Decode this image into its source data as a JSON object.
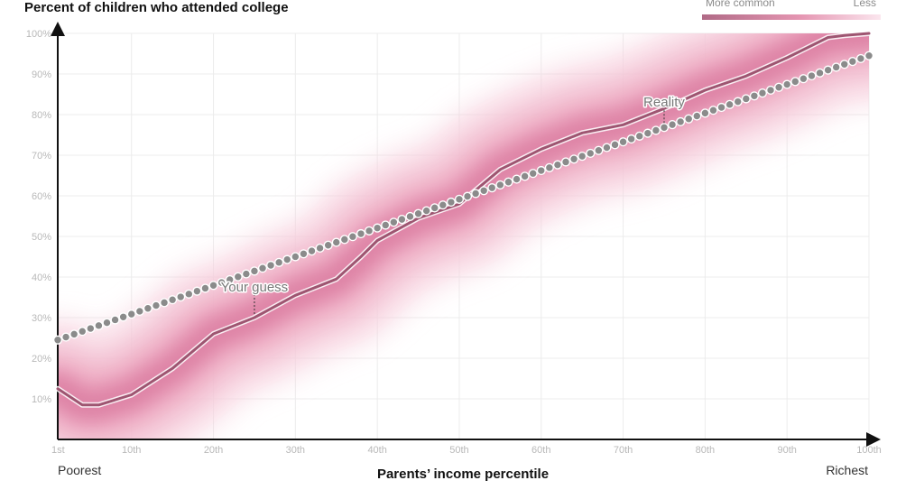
{
  "chart_data": {
    "type": "line",
    "title": "Percent of children who attended college",
    "xlabel": "Parents’ income percentile",
    "ylabel": "",
    "xlim": [
      1,
      100
    ],
    "ylim": [
      0,
      100
    ],
    "x_ticks": [
      {
        "value": 1,
        "label": "1st"
      },
      {
        "value": 10,
        "label": "10th"
      },
      {
        "value": 20,
        "label": "20th"
      },
      {
        "value": 30,
        "label": "30th"
      },
      {
        "value": 40,
        "label": "40th"
      },
      {
        "value": 50,
        "label": "50th"
      },
      {
        "value": 60,
        "label": "60th"
      },
      {
        "value": 70,
        "label": "70th"
      },
      {
        "value": 80,
        "label": "80th"
      },
      {
        "value": 90,
        "label": "90th"
      },
      {
        "value": 100,
        "label": "100th"
      }
    ],
    "y_ticks": [
      {
        "value": 10,
        "label": "10%"
      },
      {
        "value": 20,
        "label": "20%"
      },
      {
        "value": 30,
        "label": "30%"
      },
      {
        "value": 40,
        "label": "40%"
      },
      {
        "value": 50,
        "label": "50%"
      },
      {
        "value": 60,
        "label": "60%"
      },
      {
        "value": 70,
        "label": "70%"
      },
      {
        "value": 80,
        "label": "80%"
      },
      {
        "value": 90,
        "label": "90%"
      },
      {
        "value": 100,
        "label": "100%"
      }
    ],
    "x_end_labels": {
      "left": "Poorest",
      "right": "Richest"
    },
    "grid": true,
    "legend": {
      "placement": "top-right",
      "left_label": "More common",
      "right_label": "Less",
      "colors": [
        "#b06a86",
        "#e596b2",
        "#fbe6ee"
      ]
    },
    "series": [
      {
        "name": "Reality",
        "style": "line",
        "color": "#9e5571",
        "x": [
          1,
          4,
          6,
          10,
          15,
          20,
          25,
          30,
          35,
          38,
          40,
          45,
          50,
          55,
          60,
          65,
          70,
          75,
          80,
          85,
          90,
          95,
          97,
          100
        ],
        "y": [
          12.5,
          8.5,
          8.5,
          11,
          17.5,
          26,
          30,
          35.5,
          39.5,
          45,
          49,
          54.5,
          58,
          66.5,
          71.5,
          75.5,
          77.5,
          81.5,
          86,
          89.5,
          94,
          99,
          99.5,
          100
        ]
      },
      {
        "name": "Your guess",
        "style": "dots",
        "color": "#8b8b8b",
        "x_start": 1,
        "x_end": 100,
        "y_start": 24.5,
        "y_end": 94.5
      }
    ],
    "density_band": {
      "color": "#d9789e",
      "center": "Reality"
    },
    "annotations": [
      {
        "text": "Reality",
        "x": 75,
        "y": 81.5
      },
      {
        "text": "Your guess",
        "x": 25,
        "y": 30.5
      }
    ]
  }
}
